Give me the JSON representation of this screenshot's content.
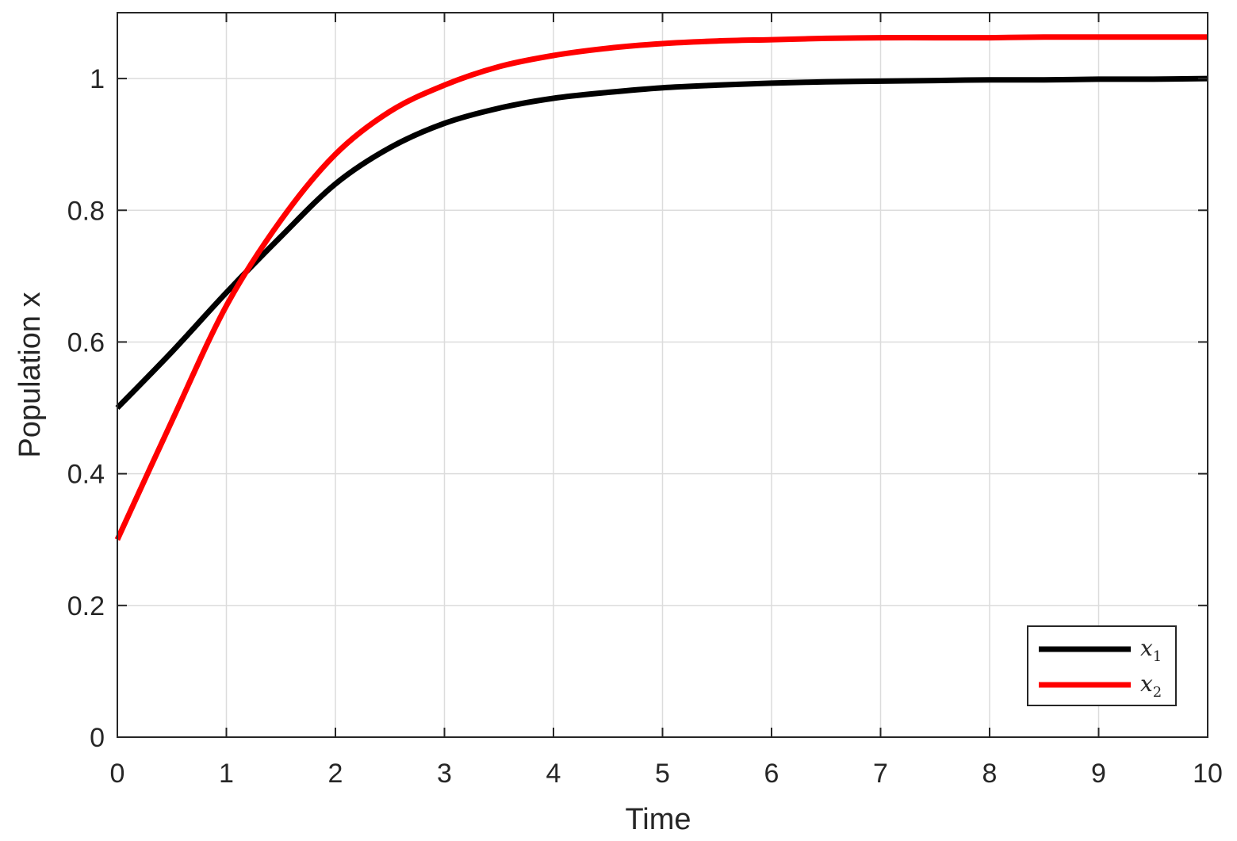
{
  "chart_data": {
    "type": "line",
    "title": "",
    "xlabel": "Time",
    "ylabel": "Population x",
    "xlim": [
      0,
      10
    ],
    "ylim": [
      0,
      1.1
    ],
    "grid": true,
    "legend_position": "bottom-right",
    "xticks": [
      "0",
      "1",
      "2",
      "3",
      "4",
      "5",
      "6",
      "7",
      "8",
      "9",
      "10"
    ],
    "yticks": [
      "0",
      "0.2",
      "0.4",
      "0.6",
      "0.8",
      "1"
    ],
    "x": [
      0,
      0.5,
      1,
      1.5,
      2,
      2.5,
      3,
      3.5,
      4,
      4.5,
      5,
      5.5,
      6,
      6.5,
      7,
      7.5,
      8,
      8.5,
      9,
      9.5,
      10
    ],
    "series": [
      {
        "name": "x",
        "name_subscript": "1",
        "color": "#000000",
        "values": [
          0.5,
          0.585,
          0.675,
          0.76,
          0.84,
          0.895,
          0.932,
          0.955,
          0.97,
          0.979,
          0.986,
          0.99,
          0.993,
          0.995,
          0.996,
          0.997,
          0.998,
          0.998,
          0.999,
          0.999,
          1.0
        ]
      },
      {
        "name": "x",
        "name_subscript": "2",
        "color": "#ff0000",
        "values": [
          0.3,
          0.48,
          0.655,
          0.785,
          0.885,
          0.95,
          0.99,
          1.018,
          1.035,
          1.046,
          1.053,
          1.057,
          1.059,
          1.061,
          1.062,
          1.062,
          1.062,
          1.063,
          1.063,
          1.063,
          1.063
        ]
      }
    ]
  }
}
